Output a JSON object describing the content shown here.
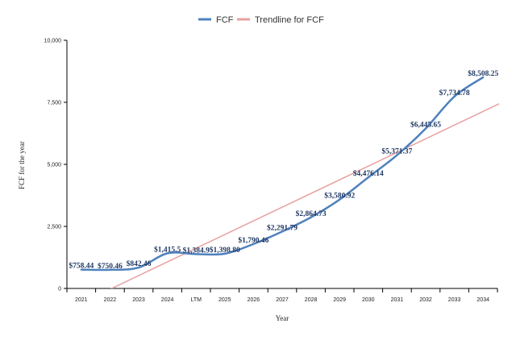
{
  "chart_data": {
    "type": "line",
    "title": "",
    "xlabel": "Year",
    "ylabel": "FCF for the year",
    "categories": [
      "2021",
      "2022",
      "2023",
      "2024",
      "LTM",
      "2025",
      "2026",
      "2027",
      "2028",
      "2029",
      "2030",
      "2031",
      "2032",
      "2033",
      "2034"
    ],
    "series": [
      {
        "name": "FCF",
        "color": "#4f81bd",
        "values": [
          758.44,
          750.46,
          842.46,
          1415.5,
          1384.9,
          1398.8,
          1790.46,
          2291.79,
          2864.73,
          3580.92,
          4476.14,
          5371.37,
          6445.65,
          7734.78,
          8508.25
        ],
        "labels": [
          "$758.44",
          "$750.46",
          "$842.46",
          "$1,415.5",
          "$1,384.9",
          "$1,398.80",
          "$1,790.46",
          "$2,291.79",
          "$2,864.73",
          "$3,580.92",
          "$4,476.14",
          "$5,371.37",
          "$6,445.65",
          "$7,734.78",
          "$8,508.25"
        ]
      },
      {
        "name": "Trendline for FCF",
        "color": "#e8a0a0",
        "type": "linear-trend",
        "values": [
          -585,
          0,
          585,
          1170,
          1755,
          2340,
          2925,
          3510,
          4095,
          4680,
          5265,
          5850,
          6435,
          7020,
          7440
        ]
      }
    ],
    "ylim": [
      0,
      10000
    ],
    "yticks": [
      0,
      2500,
      5000,
      7500,
      10000
    ],
    "ytick_labels": [
      "0",
      "2,500",
      "5,000",
      "7,500",
      "10,000"
    ],
    "grid": false,
    "legend_position": "top-center"
  }
}
